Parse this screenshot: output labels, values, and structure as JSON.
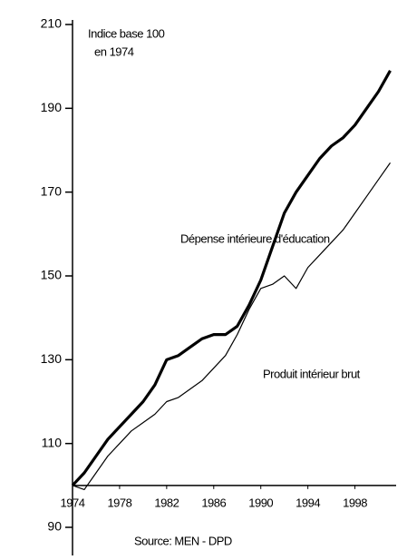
{
  "chart_data": {
    "type": "line",
    "annotation": [
      "Indice base 100",
      "en 1974"
    ],
    "source": "Source: MEN - DPD",
    "x": [
      1974,
      1975,
      1976,
      1977,
      1978,
      1979,
      1980,
      1981,
      1982,
      1983,
      1984,
      1985,
      1986,
      1987,
      1988,
      1989,
      1990,
      1991,
      1992,
      1993,
      1994,
      1995,
      1996,
      1997,
      1998,
      1999,
      2000,
      2001
    ],
    "xlim": [
      1974,
      2001.5
    ],
    "xticks": [
      1974,
      1978,
      1982,
      1986,
      1990,
      1994,
      1998
    ],
    "ylim": [
      90,
      210
    ],
    "yticks": [
      90,
      110,
      130,
      150,
      170,
      190,
      210
    ],
    "series": [
      {
        "name": "Dépense intérieure d'éducation",
        "color": "#000000",
        "width": 3.2,
        "values": [
          100,
          103,
          107,
          111,
          114,
          117,
          120,
          124,
          130,
          131,
          133,
          135,
          136,
          136,
          138,
          143,
          149,
          157,
          165,
          170,
          174,
          178,
          181,
          183,
          186,
          190,
          194,
          199
        ]
      },
      {
        "name": "Produit intérieur brut",
        "color": "#000000",
        "width": 1.2,
        "values": [
          100,
          99,
          103,
          107,
          110,
          113,
          115,
          117,
          120,
          121,
          123,
          125,
          128,
          131,
          136,
          142,
          147,
          148,
          150,
          147,
          152,
          155,
          158,
          161,
          165,
          169,
          173,
          177
        ]
      }
    ]
  }
}
